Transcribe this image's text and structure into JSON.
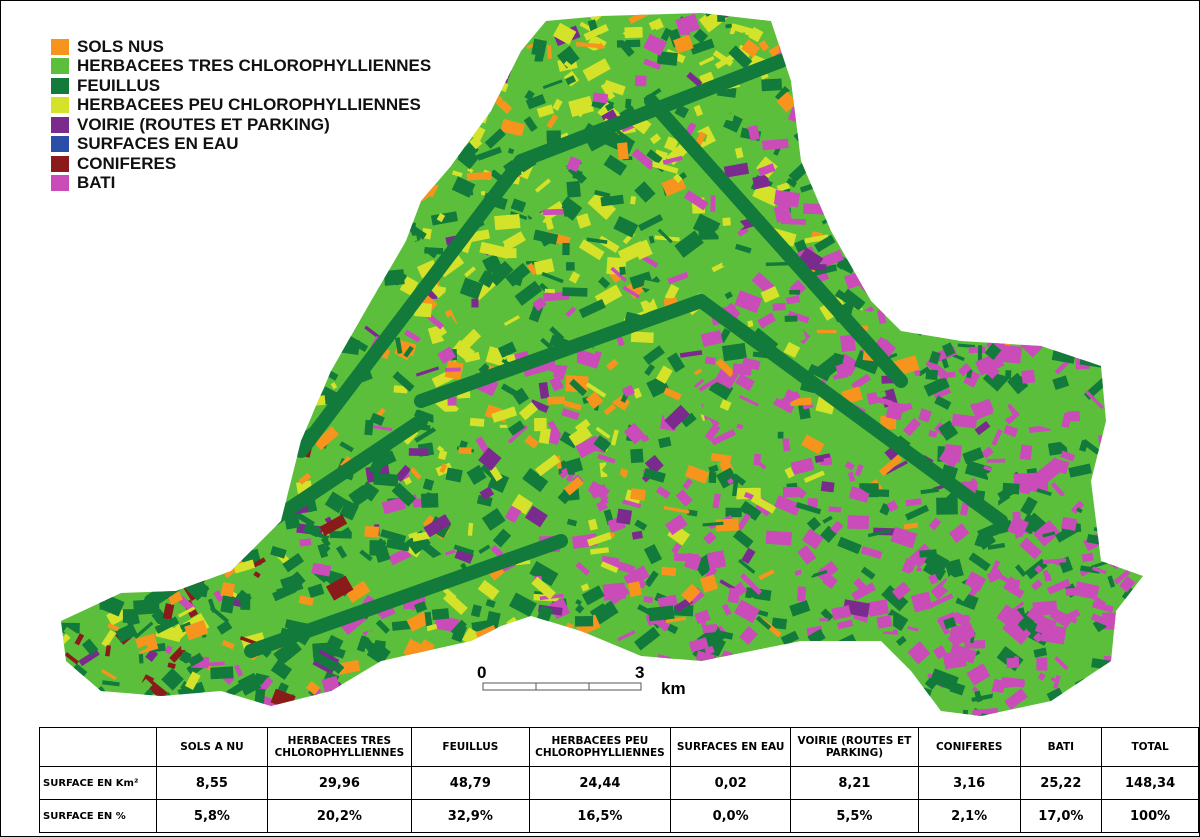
{
  "legend": {
    "items": [
      {
        "label": "SOLS NUS",
        "color": "#f7941d"
      },
      {
        "label": "HERBACEES TRES CHLOROPHYLLIENNES",
        "color": "#5cbf3c"
      },
      {
        "label": "FEUILLUS",
        "color": "#127a3a"
      },
      {
        "label": "HERBACEES PEU CHLOROPHYLLIENNES",
        "color": "#d4e22a"
      },
      {
        "label": "VOIRIE (ROUTES ET PARKING)",
        "color": "#7b2b8e"
      },
      {
        "label": "SURFACES EN EAU",
        "color": "#2b4fa8"
      },
      {
        "label": "CONIFERES",
        "color": "#8b1a1a"
      },
      {
        "label": "BATI",
        "color": "#c94cb8"
      }
    ]
  },
  "scale_bar": {
    "start": "0",
    "end": "3",
    "unit": "km"
  },
  "table": {
    "columns": [
      "SOLS A NU",
      "HERBACEES TRES CHLOROPHYLLIENNES",
      "FEUILLUS",
      "HERBACEES PEU CHLOROPHYLLIENNES",
      "SURFACES EN EAU",
      "VOIRIE (ROUTES ET PARKING)",
      "CONIFERES",
      "BATI",
      "TOTAL"
    ],
    "rows": [
      {
        "label": "SURFACE EN Km²",
        "values": [
          "8,55",
          "29,96",
          "48,79",
          "24,44",
          "0,02",
          "8,21",
          "3,16",
          "25,22",
          "148,34"
        ]
      },
      {
        "label": "SURFACE EN %",
        "values": [
          "5,8%",
          "20,2%",
          "32,9%",
          "16,5%",
          "0,0%",
          "5,5%",
          "2,1%",
          "17,0%",
          "100%"
        ]
      }
    ]
  }
}
